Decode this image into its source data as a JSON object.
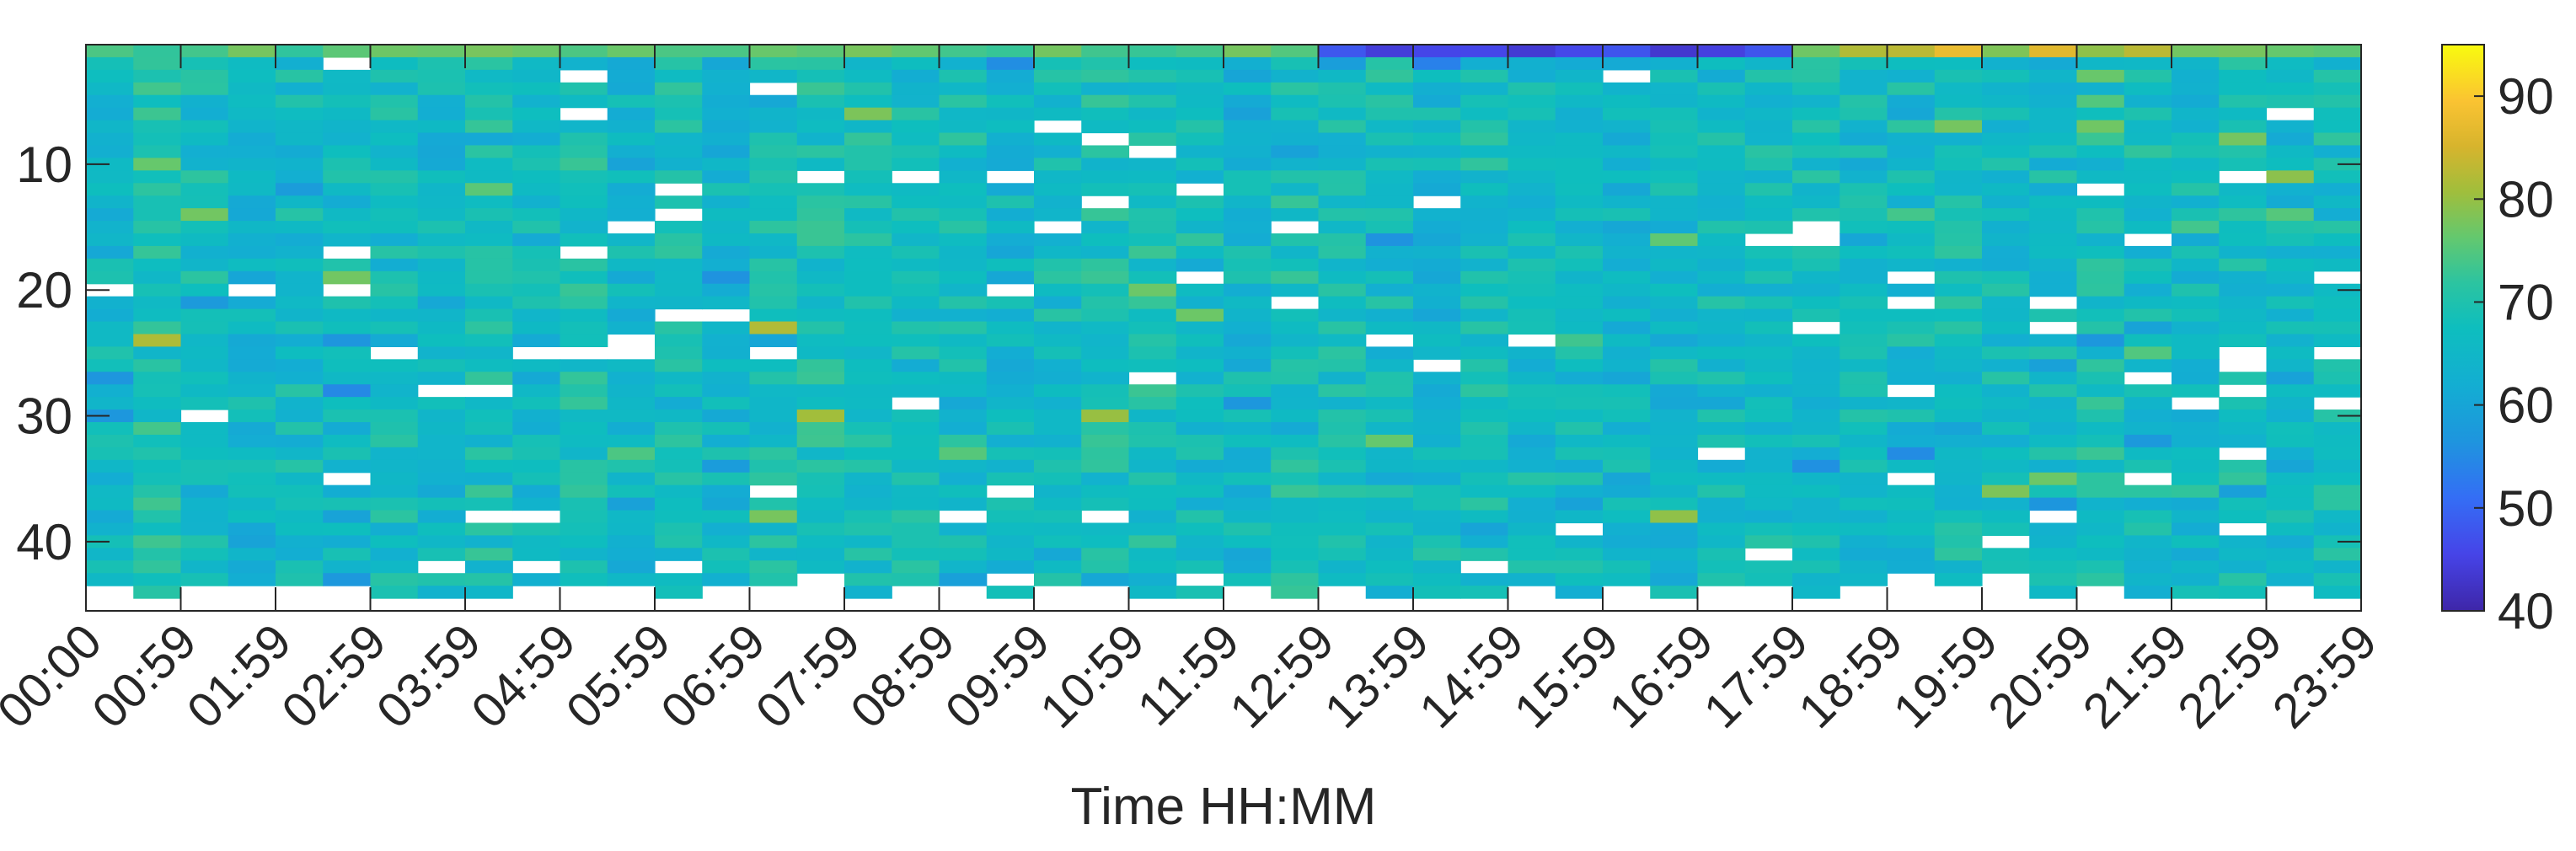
{
  "chart_data": {
    "type": "heatmap",
    "title": "",
    "xlabel": "Time HH:MM",
    "ylabel": "",
    "x_tick_labels": [
      "00:00",
      "00:59",
      "01:59",
      "02:59",
      "03:59",
      "04:59",
      "05:59",
      "06:59",
      "07:59",
      "08:59",
      "09:59",
      "10:59",
      "11:59",
      "12:59",
      "13:59",
      "14:59",
      "15:59",
      "16:59",
      "17:59",
      "18:59",
      "19:59",
      "20:59",
      "21:59",
      "22:59",
      "23:59"
    ],
    "x_columns": 48,
    "column_interval_minutes": 30,
    "y_ticks": [
      10,
      20,
      30,
      40
    ],
    "ylim": [
      1,
      45
    ],
    "rows": 44,
    "y_reversed": true,
    "colorbar": {
      "ticks": [
        40,
        50,
        60,
        70,
        80,
        90
      ],
      "range": [
        40,
        95
      ],
      "colormap": "parula"
    },
    "value_summary": {
      "typical_range": [
        62,
        72
      ],
      "low_band": {
        "row": 1,
        "approx_value": 42,
        "time_span": [
          "13:00",
          "18:00"
        ]
      },
      "high_band": {
        "row": 1,
        "approx_value": 88,
        "time_span": [
          "18:30",
          "22:00"
        ]
      },
      "missing_cells": "scattered white cells (no data) throughout"
    },
    "grid": false,
    "colorbar_position": "right"
  }
}
